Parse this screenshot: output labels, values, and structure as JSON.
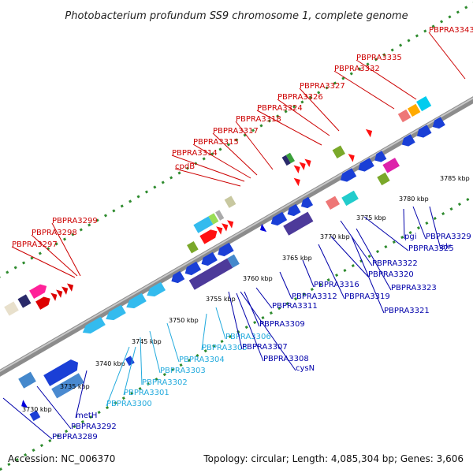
{
  "title": "Photobacterium profundum SS9 chromosome 1, complete genome",
  "footer": {
    "accession": "Accession: NC_006370",
    "topology": "Topology: circular; Length: 4,085,304 bp; Genes: 3,606"
  },
  "colors": {
    "backbone": "#8c8c8c",
    "tick_dots": "#2e8b2e",
    "top_strand_labels": "#cc0000",
    "bottom_strand_labels": "#0000aa",
    "rna_labels": "#22aadd"
  },
  "ticks": [
    "3730 kbp",
    "3735 kbp",
    "3740 kbp",
    "3745 kbp",
    "3750 kbp",
    "3755 kbp",
    "3760 kbp",
    "3765 kbp",
    "3770 kbp",
    "3775 kbp",
    "3780 kbp",
    "3785 kbp"
  ],
  "top_labels": [
    "PBPRA3297",
    "PBPRA3298",
    "PBPRA3299",
    "cpdB",
    "PBPRA3314",
    "PBPRA3315",
    "PBPRA3317",
    "PBPRA3318",
    "PBPRA3324",
    "PBPRA3326",
    "PBPRA3327",
    "PBPRA3332",
    "PBPRA3335",
    "PBPRA3343"
  ],
  "bottom_labels": [
    "PBPRA3289",
    "PBPRA3292",
    "metH",
    "PBPRA3300",
    "PBPRA3301",
    "PBPRA3302",
    "PBPRA3303",
    "PBPRA3304",
    "PBPRA3305",
    "PBPRA3306",
    "PBPRA3307",
    "PBPRA3308",
    "cysN",
    "PBPRA3309",
    "PBPRA3311",
    "PBPRA3312",
    "PBPRA3316",
    "PBPRA3319",
    "PBPRA3320",
    "PBPRA3321",
    "PBPRA3322",
    "PBPRA3323",
    "PBPRA3325",
    "pgi",
    "alr",
    "PBPRA3329"
  ]
}
